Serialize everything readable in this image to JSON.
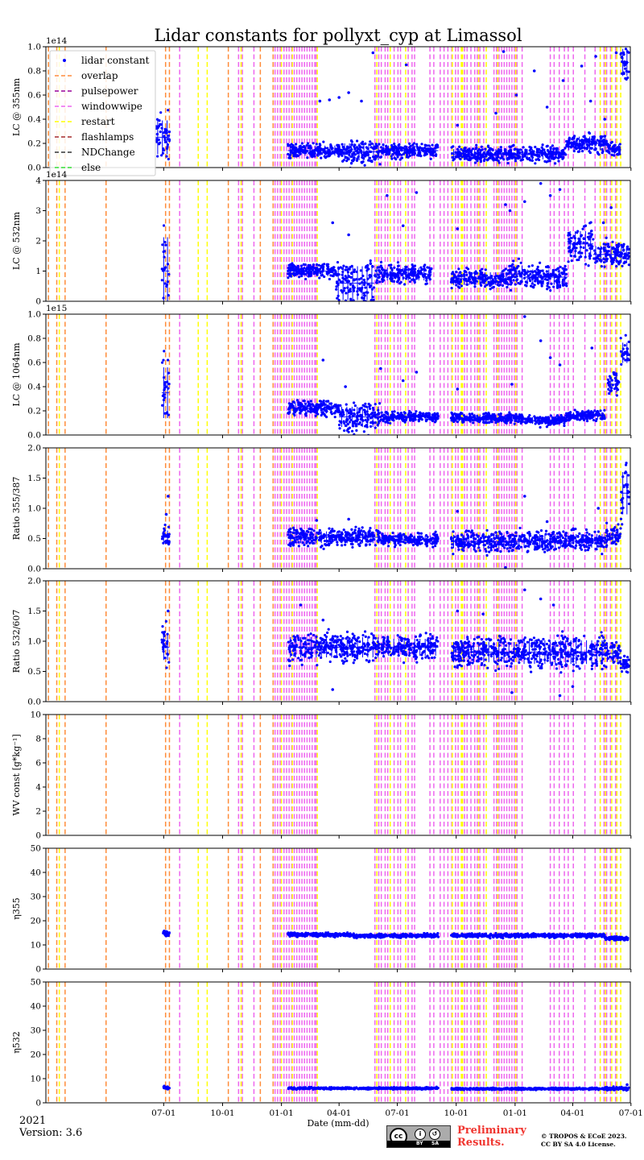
{
  "figure": {
    "title": "Lidar constants for pollyxt_cyp at Limassol",
    "xlabel": "Date (mm-dd)",
    "year_label": "2021",
    "version_label": "Version: 3.6",
    "preliminary_line1": "Preliminary",
    "preliminary_line2": "Results.",
    "copyright_line1": "© TROPOS & ECoE 2023.",
    "copyright_line2": "CC BY SA 4.0 License.",
    "cc_badge": {
      "cc": "cc",
      "by": "BY",
      "sa": "SA"
    }
  },
  "colors": {
    "lidar_constant": "#0000ff",
    "overlap": "#ff8c3a",
    "pulsepower": "#990099",
    "windowwipe": "#ee66ee",
    "restart": "#ffff00",
    "flashlamps": "#a52a2a",
    "NDChange": "#333333",
    "else": "#33dd33"
  },
  "legend": [
    {
      "key": "lidar_constant",
      "label": "lidar constant",
      "kind": "marker"
    },
    {
      "key": "overlap",
      "label": "overlap",
      "kind": "line"
    },
    {
      "key": "pulsepower",
      "label": "pulsepower",
      "kind": "line"
    },
    {
      "key": "windowwipe",
      "label": "windowwipe",
      "kind": "line"
    },
    {
      "key": "restart",
      "label": "restart",
      "kind": "line"
    },
    {
      "key": "flashlamps",
      "label": "flashlamps",
      "kind": "line"
    },
    {
      "key": "NDChange",
      "label": "NDChange",
      "kind": "line"
    },
    {
      "key": "else",
      "label": "else",
      "kind": "line"
    }
  ],
  "chart_data": {
    "type": "scatter",
    "title": "Lidar constants for pollyxt_cyp at Limassol",
    "xlabel": "Date (mm-dd)",
    "x_unit": "days since 2021-01-01",
    "xlim": [
      -3,
      910
    ],
    "x_ticks": [
      {
        "day": 181,
        "label": "07-01"
      },
      {
        "day": 273,
        "label": "10-01"
      },
      {
        "day": 365,
        "label": "01-01"
      },
      {
        "day": 455,
        "label": "04-01"
      },
      {
        "day": 546,
        "label": "07-01"
      },
      {
        "day": 638,
        "label": "10-01"
      },
      {
        "day": 730,
        "label": "01-01"
      },
      {
        "day": 820,
        "label": "04-01"
      },
      {
        "day": 911,
        "label": "07-01"
      }
    ],
    "events": {
      "overlap": [
        1,
        14,
        27,
        91,
        184,
        190,
        282,
        332,
        352
      ],
      "windowwipe": [
        206,
        298,
        304,
        322,
        355,
        359,
        363,
        369,
        373,
        377,
        381,
        385,
        389,
        393,
        397,
        401,
        405,
        409,
        413,
        417,
        419,
        511,
        517,
        521,
        527,
        531,
        541,
        547,
        551,
        563,
        569,
        573,
        597,
        603,
        613,
        619,
        625,
        631,
        637,
        641,
        647,
        651,
        655,
        661,
        667,
        671,
        675,
        681,
        697,
        701,
        705,
        709,
        713,
        717,
        721,
        725,
        729,
        733,
        741,
        785,
        791,
        799,
        807,
        813,
        821,
        839,
        855,
        863,
        869,
        873,
        879,
        887
      ],
      "restart": [
        18,
        235,
        249,
        302,
        365,
        382,
        421,
        514,
        535,
        559,
        632,
        646,
        647,
        648,
        673,
        685,
        703,
        731,
        863,
        871,
        881,
        889,
        895
      ]
    },
    "panels": [
      {
        "id": "lc355",
        "ylabel": "LC @ 355nm",
        "ylim": [
          0,
          1.0
        ],
        "yticks": [
          0.0,
          0.2,
          0.4,
          0.6,
          0.8,
          1.0
        ],
        "tick_labels": [
          "0.0",
          "0.2",
          "0.4",
          "0.6",
          "0.8",
          "1.0"
        ],
        "offset_label": "1e14",
        "series": [
          {
            "name": "lidar constant",
            "segments": [
              [
                168,
                190,
                0.25,
                0.1
              ],
              [
                375,
                460,
                0.14,
                0.03
              ],
              [
                460,
                520,
                0.13,
                0.05
              ],
              [
                520,
                610,
                0.14,
                0.03
              ],
              [
                630,
                745,
                0.11,
                0.03
              ],
              [
                745,
                810,
                0.11,
                0.03
              ],
              [
                810,
                875,
                0.2,
                0.04
              ],
              [
                875,
                895,
                0.15,
                0.03
              ],
              [
                895,
                908,
                0.87,
                0.08
              ]
            ],
            "outliers": [
              [
                425,
                0.55
              ],
              [
                440,
                0.56
              ],
              [
                455,
                0.58
              ],
              [
                470,
                0.62
              ],
              [
                490,
                0.55
              ],
              [
                508,
                0.95
              ],
              [
                560,
                0.85
              ],
              [
                640,
                0.35
              ],
              [
                700,
                0.45
              ],
              [
                712,
                0.96
              ],
              [
                732,
                0.6
              ],
              [
                760,
                0.8
              ],
              [
                780,
                0.5
              ],
              [
                805,
                0.72
              ],
              [
                834,
                0.84
              ],
              [
                848,
                0.55
              ],
              [
                856,
                0.92
              ],
              [
                870,
                0.4
              ],
              [
                888,
                0.95
              ]
            ]
          }
        ]
      },
      {
        "id": "lc532",
        "ylabel": "LC @ 532nm",
        "ylim": [
          0,
          4
        ],
        "yticks": [
          0,
          1,
          2,
          3,
          4
        ],
        "tick_labels": [
          "0",
          "1",
          "2",
          "3",
          "4"
        ],
        "offset_label": "1e14",
        "series": [
          {
            "name": "lidar constant",
            "segments": [
              [
                178,
                190,
                1.0,
                0.8
              ],
              [
                375,
                450,
                1.0,
                0.12
              ],
              [
                450,
                510,
                0.6,
                0.4
              ],
              [
                510,
                600,
                0.9,
                0.15
              ],
              [
                630,
                720,
                0.75,
                0.15
              ],
              [
                720,
                745,
                0.9,
                0.2
              ],
              [
                745,
                812,
                0.8,
                0.18
              ],
              [
                812,
                852,
                1.9,
                0.3
              ],
              [
                852,
                908,
                1.55,
                0.2
              ]
            ],
            "outliers": [
              [
                445,
                2.6
              ],
              [
                470,
                2.2
              ],
              [
                530,
                3.5
              ],
              [
                555,
                2.5
              ],
              [
                576,
                3.6
              ],
              [
                640,
                2.4
              ],
              [
                715,
                3.2
              ],
              [
                722,
                3.0
              ],
              [
                745,
                3.3
              ],
              [
                770,
                3.9
              ],
              [
                785,
                3.5
              ],
              [
                800,
                3.7
              ],
              [
                840,
                2.5
              ],
              [
                868,
                2.6
              ],
              [
                880,
                3.1
              ]
            ]
          }
        ]
      },
      {
        "id": "lc1064",
        "ylabel": "LC @ 1064nm",
        "ylim": [
          0,
          1.0
        ],
        "yticks": [
          0.0,
          0.2,
          0.4,
          0.6,
          0.8,
          1.0
        ],
        "tick_labels": [
          "0.0",
          "0.2",
          "0.4",
          "0.6",
          "0.8",
          "1.0"
        ],
        "offset_label": "1e15",
        "series": [
          {
            "name": "lidar constant",
            "segments": [
              [
                178,
                190,
                0.35,
                0.15
              ],
              [
                375,
                455,
                0.22,
                0.03
              ],
              [
                455,
                520,
                0.15,
                0.06
              ],
              [
                520,
                610,
                0.15,
                0.02
              ],
              [
                630,
                745,
                0.14,
                0.02
              ],
              [
                745,
                810,
                0.12,
                0.02
              ],
              [
                810,
                870,
                0.16,
                0.02
              ],
              [
                875,
                893,
                0.42,
                0.05
              ],
              [
                895,
                908,
                0.68,
                0.06
              ]
            ],
            "outliers": [
              [
                430,
                0.62
              ],
              [
                465,
                0.4
              ],
              [
                520,
                0.55
              ],
              [
                555,
                0.45
              ],
              [
                576,
                0.52
              ],
              [
                640,
                0.38
              ],
              [
                725,
                0.42
              ],
              [
                745,
                0.98
              ],
              [
                770,
                0.78
              ],
              [
                785,
                0.64
              ],
              [
                800,
                0.58
              ],
              [
                850,
                0.72
              ]
            ]
          }
        ]
      },
      {
        "id": "ratio355",
        "ylabel": "Ratio 355/387",
        "ylim": [
          0,
          2.0
        ],
        "yticks": [
          0.0,
          0.5,
          1.0,
          1.5,
          2.0
        ],
        "tick_labels": [
          "0.0",
          "0.5",
          "1.0",
          "1.5",
          "2.0"
        ],
        "offset_label": "",
        "series": [
          {
            "name": "lidar constant",
            "segments": [
              [
                178,
                190,
                0.52,
                0.08
              ],
              [
                375,
                520,
                0.52,
                0.07
              ],
              [
                520,
                610,
                0.48,
                0.05
              ],
              [
                630,
                740,
                0.45,
                0.08
              ],
              [
                740,
                870,
                0.46,
                0.08
              ],
              [
                870,
                895,
                0.55,
                0.08
              ],
              [
                895,
                908,
                1.25,
                0.25
              ]
            ],
            "outliers": [
              [
                188,
                1.2
              ],
              [
                185,
                0.9
              ],
              [
                420,
                0.8
              ],
              [
                470,
                0.82
              ],
              [
                640,
                0.95
              ],
              [
                700,
                0.6
              ],
              [
                715,
                0.02
              ],
              [
                745,
                1.2
              ],
              [
                780,
                0.78
              ],
              [
                860,
                1.0
              ]
            ]
          }
        ]
      },
      {
        "id": "ratio532",
        "ylabel": "Ratio 532/607",
        "ylim": [
          0,
          2.0
        ],
        "yticks": [
          0.0,
          0.5,
          1.0,
          1.5,
          2.0
        ],
        "tick_labels": [
          "0.0",
          "0.5",
          "1.0",
          "1.5",
          "2.0"
        ],
        "offset_label": "",
        "series": [
          {
            "name": "lidar constant",
            "segments": [
              [
                178,
                190,
                0.9,
                0.15
              ],
              [
                375,
                520,
                0.9,
                0.12
              ],
              [
                520,
                610,
                0.9,
                0.1
              ],
              [
                630,
                740,
                0.82,
                0.12
              ],
              [
                740,
                870,
                0.82,
                0.14
              ],
              [
                870,
                895,
                0.8,
                0.1
              ],
              [
                895,
                908,
                0.62,
                0.06
              ]
            ],
            "outliers": [
              [
                188,
                1.5
              ],
              [
                395,
                1.6
              ],
              [
                430,
                1.35
              ],
              [
                445,
                0.2
              ],
              [
                640,
                1.5
              ],
              [
                680,
                1.45
              ],
              [
                725,
                0.15
              ],
              [
                745,
                1.85
              ],
              [
                770,
                1.7
              ],
              [
                790,
                1.6
              ],
              [
                800,
                0.1
              ],
              [
                820,
                0.25
              ]
            ]
          }
        ]
      },
      {
        "id": "wv",
        "ylabel": "WV const [g*kg⁻¹]",
        "ylim": [
          0,
          10
        ],
        "yticks": [
          0,
          2,
          4,
          6,
          8,
          10
        ],
        "tick_labels": [
          "0",
          "2",
          "4",
          "6",
          "8",
          "10"
        ],
        "offset_label": "",
        "series": [
          {
            "name": "lidar constant",
            "segments": [],
            "outliers": []
          }
        ]
      },
      {
        "id": "eta355",
        "ylabel": "η355",
        "ylim": [
          0,
          50
        ],
        "yticks": [
          0,
          10,
          20,
          30,
          40,
          50
        ],
        "tick_labels": [
          "0",
          "10",
          "20",
          "30",
          "40",
          "50"
        ],
        "offset_label": "",
        "series": [
          {
            "name": "lidar constant",
            "segments": [
              [
                180,
                190,
                14.8,
                0.6
              ],
              [
                375,
                470,
                14.2,
                0.4
              ],
              [
                470,
                610,
                13.8,
                0.4
              ],
              [
                630,
                870,
                13.9,
                0.4
              ],
              [
                870,
                908,
                12.6,
                0.4
              ]
            ],
            "outliers": []
          }
        ]
      },
      {
        "id": "eta532",
        "ylabel": "η532",
        "ylim": [
          0,
          50
        ],
        "yticks": [
          0,
          10,
          20,
          30,
          40,
          50
        ],
        "tick_labels": [
          "0",
          "10",
          "20",
          "30",
          "40",
          "50"
        ],
        "offset_label": "",
        "series": [
          {
            "name": "lidar constant",
            "segments": [
              [
                180,
                190,
                6.2,
                0.3
              ],
              [
                375,
                610,
                6.0,
                0.2
              ],
              [
                630,
                870,
                5.8,
                0.2
              ],
              [
                870,
                908,
                5.9,
                0.3
              ]
            ],
            "outliers": [
              [
                905,
                7.5
              ]
            ]
          }
        ]
      }
    ]
  }
}
